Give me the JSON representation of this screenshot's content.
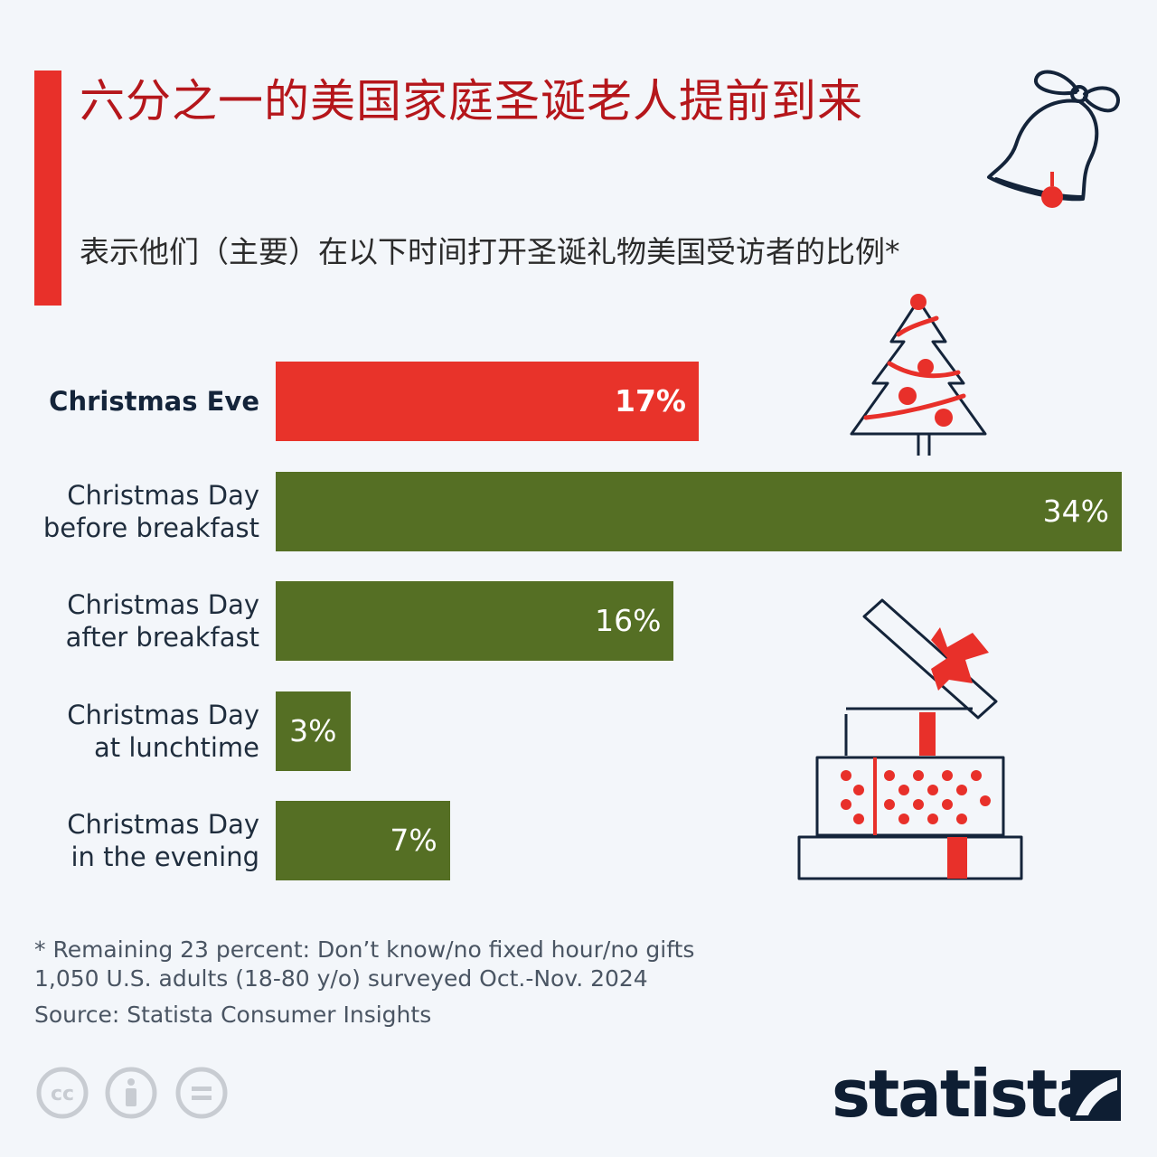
{
  "title": "六分之一的美国家庭圣诞老人提前到来",
  "subtitle": "表示他们（主要）在以下时间打开圣诞礼物美国受访者的比例*",
  "colors": {
    "accent": "#e8302a",
    "title": "#b5161b",
    "bar_highlight": "#e8332a",
    "bar": "#556f24"
  },
  "chart_data": {
    "type": "bar",
    "orientation": "horizontal",
    "categories": [
      [
        "Christmas Eve"
      ],
      [
        "Christmas Day",
        "before breakfast"
      ],
      [
        "Christmas Day",
        "after breakfast"
      ],
      [
        "Christmas Day",
        "at lunchtime"
      ],
      [
        "Christmas Day",
        "in the evening"
      ]
    ],
    "values": [
      17,
      34,
      16,
      3,
      7
    ],
    "value_labels": [
      "17%",
      "34%",
      "16%",
      "3%",
      "7%"
    ],
    "highlight_index": 0,
    "xlim": [
      0,
      34
    ],
    "unit": "%",
    "grid": false,
    "legend": "none"
  },
  "footnotes": {
    "note": "* Remaining 23 percent: Don’t know/no fixed hour/no gifts",
    "sample": "1,050 U.S. adults (18-80 y/o) surveyed Oct.-Nov. 2024",
    "source": "Source: Statista Consumer Insights"
  },
  "icons": [
    "bell-icon",
    "christmas-tree-icon",
    "gift-box-icon",
    "cc-icon",
    "by-icon",
    "nd-icon"
  ],
  "logo": {
    "text": "statista"
  }
}
